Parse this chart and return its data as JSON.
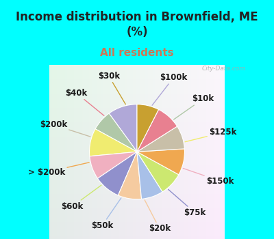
{
  "title": "Income distribution in Brownfield, ME\n(%)",
  "subtitle": "All residents",
  "bg_color": "#00FFFF",
  "chart_bg_color": "#e8f5ee",
  "labels": [
    "$100k",
    "$10k",
    "$125k",
    "$150k",
    "$75k",
    "$20k",
    "$50k",
    "$60k",
    "> $200k",
    "$200k",
    "$40k",
    "$30k"
  ],
  "sizes": [
    10.0,
    7.0,
    9.5,
    8.0,
    9.0,
    8.0,
    7.5,
    8.0,
    9.0,
    8.0,
    8.5,
    7.5
  ],
  "colors": [
    "#b0a8d8",
    "#b0c8a8",
    "#f0ec70",
    "#f0b0c0",
    "#9090cc",
    "#f5cba0",
    "#a8c0e8",
    "#cce870",
    "#f0a850",
    "#c8bfa8",
    "#e88090",
    "#c8a030"
  ],
  "watermark": "City-Data.com",
  "title_fontsize": 12,
  "subtitle_fontsize": 11,
  "subtitle_color": "#cc7755",
  "title_color": "#222222",
  "label_fontsize": 8.5,
  "startangle": 90
}
